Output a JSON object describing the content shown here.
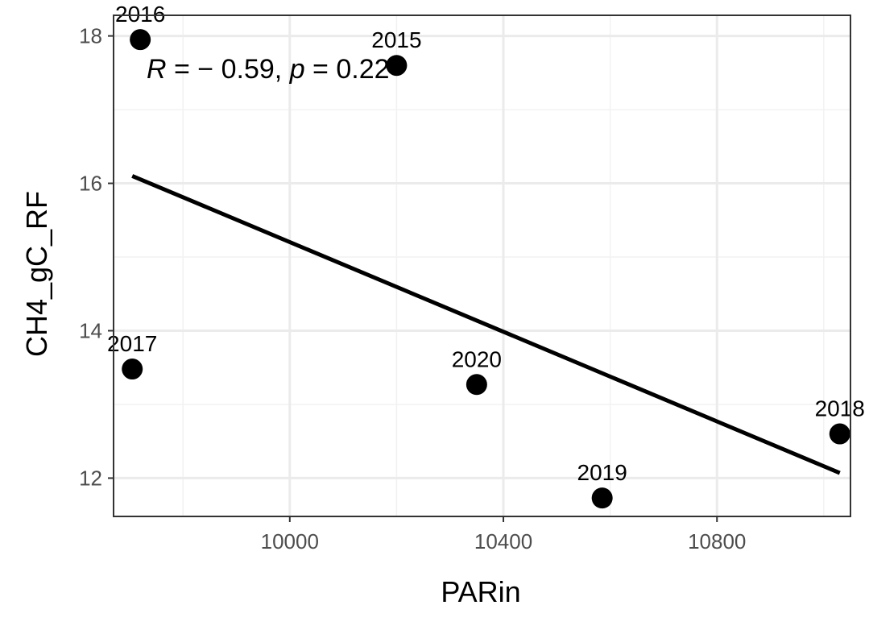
{
  "chart_data": {
    "type": "scatter",
    "xlabel": "PARin",
    "ylabel": "CH4_gC_RF",
    "xlim": [
      9670,
      11050
    ],
    "ylim": [
      11.48,
      18.28
    ],
    "x_ticks": [
      10000,
      10400,
      10800
    ],
    "x_tick_labels": [
      "10000",
      "10400",
      "10800"
    ],
    "y_ticks": [
      12,
      14,
      16,
      18
    ],
    "y_tick_labels": [
      "12",
      "14",
      "16",
      "18"
    ],
    "grid": true,
    "points": [
      {
        "label": "2016",
        "x": 9720,
        "y": 17.95
      },
      {
        "label": "2015",
        "x": 10200,
        "y": 17.6
      },
      {
        "label": "2017",
        "x": 9705,
        "y": 13.48
      },
      {
        "label": "2020",
        "x": 10350,
        "y": 13.27
      },
      {
        "label": "2019",
        "x": 10585,
        "y": 11.73
      },
      {
        "label": "2018",
        "x": 11030,
        "y": 12.6
      }
    ],
    "regression_line": {
      "x": [
        9705,
        11030
      ],
      "y": [
        16.1,
        12.07
      ]
    },
    "annotation": {
      "r_symbol": "R",
      "r_text": " = − 0.59, ",
      "p_symbol": "p",
      "p_text": " = 0.22"
    },
    "colors": {
      "points": "#000000",
      "line": "#000000",
      "grid": "#ebebeb",
      "panel_border": "#333333"
    }
  }
}
